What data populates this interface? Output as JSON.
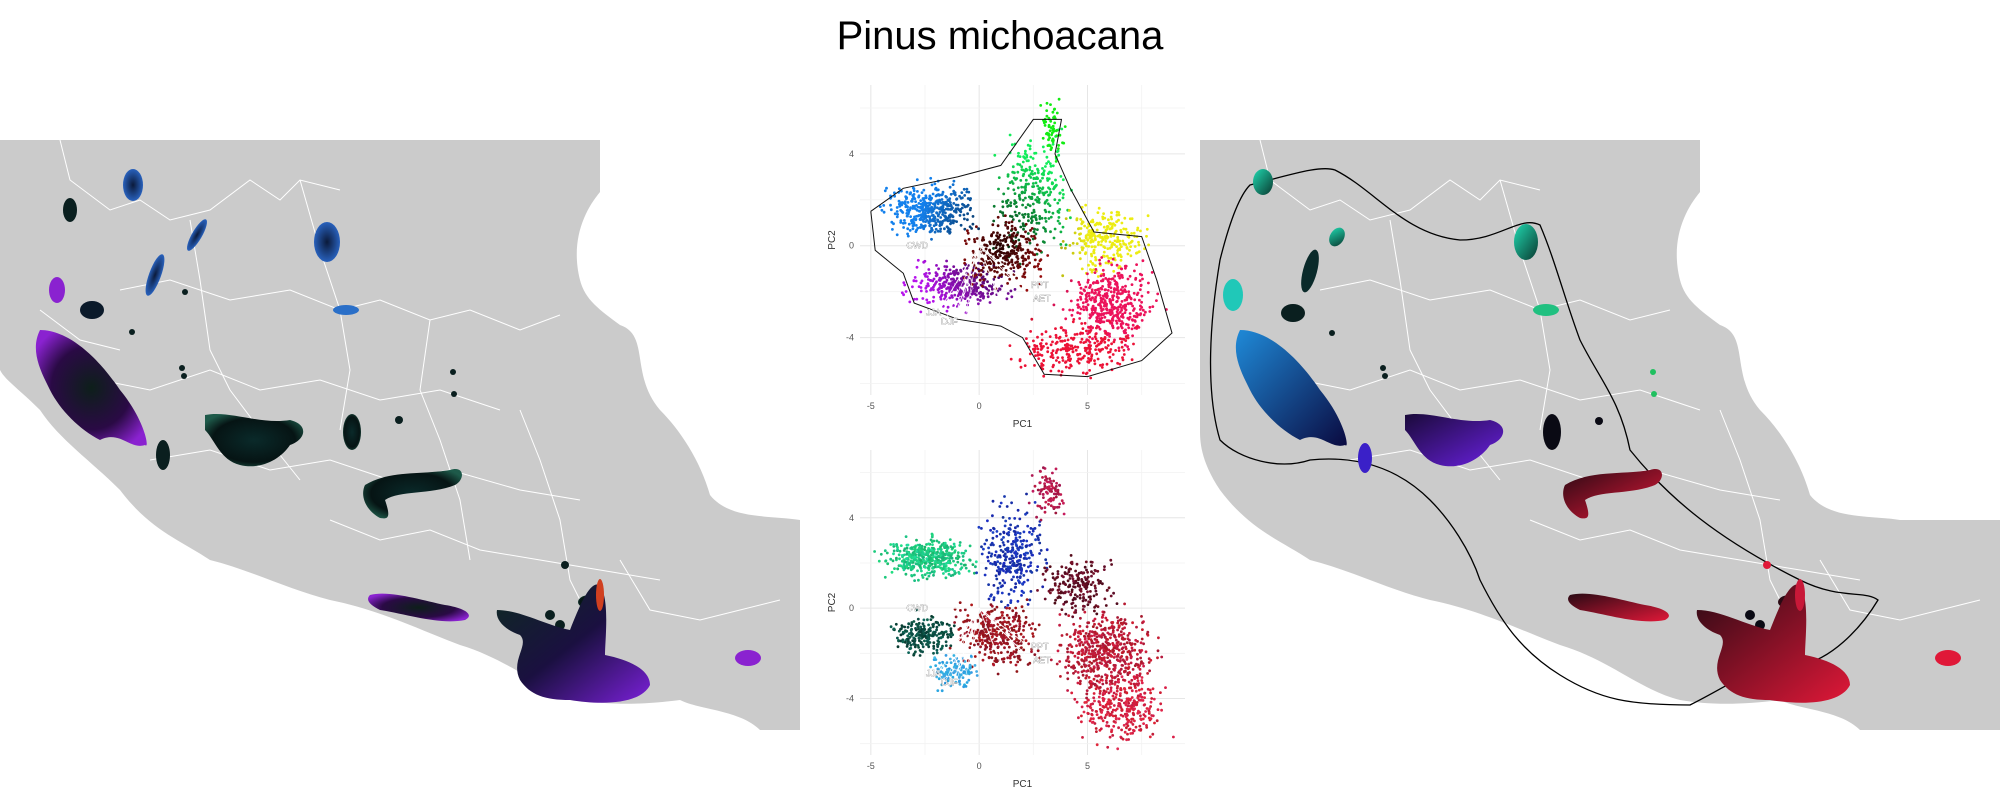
{
  "title": "Pinus michoacana",
  "colors": {
    "land": "#cbcbcb",
    "borders": "#ffffff",
    "hull": "#000000",
    "grid": "#e8e8e8"
  },
  "maps": {
    "left": {
      "description_none": ""
    },
    "right": {
      "description_none": ""
    }
  },
  "pca": {
    "xlabel": "PC1",
    "ylabel": "PC2",
    "x_ticks": [
      "-5",
      "0",
      "5"
    ],
    "y_ticks": [
      "4",
      "0",
      "-4"
    ],
    "xlim": [
      -5.5,
      9.5
    ],
    "ylim": [
      -6.5,
      7
    ],
    "vector_labels": [
      "CWD",
      "PPT",
      "AET",
      "JJA",
      "DJF"
    ]
  },
  "chart_data": [
    {
      "type": "scatter",
      "xlabel": "PC1",
      "ylabel": "PC2",
      "xlim": [
        -5.5,
        9.5
      ],
      "ylim": [
        -6.5,
        7
      ],
      "x_ticks": [
        -5,
        0,
        5
      ],
      "y_ticks": [
        4,
        0,
        -4
      ],
      "grid": true,
      "vectors": [
        {
          "label": "CWD",
          "x": -2.8,
          "y": 0.0
        },
        {
          "label": "PPT",
          "x": 2.3,
          "y": -1.7
        },
        {
          "label": "AET",
          "x": 2.4,
          "y": -2.3
        },
        {
          "label": "JJA",
          "x": -1.9,
          "y": -2.9
        },
        {
          "label": "DJF",
          "x": -1.2,
          "y": -3.3
        }
      ]
    },
    {
      "type": "scatter",
      "xlabel": "PC1",
      "ylabel": "PC2",
      "xlim": [
        -5.5,
        9.5
      ],
      "ylim": [
        -6.5,
        7
      ],
      "x_ticks": [
        -5,
        0,
        5
      ],
      "y_ticks": [
        4,
        0,
        -4
      ],
      "grid": true,
      "vectors": [
        {
          "label": "CWD",
          "x": -2.8,
          "y": 0.0
        },
        {
          "label": "PPT",
          "x": 2.3,
          "y": -1.7
        },
        {
          "label": "AET",
          "x": 2.4,
          "y": -2.3
        },
        {
          "label": "JJA",
          "x": -1.9,
          "y": -2.9
        },
        {
          "label": "DJF",
          "x": -1.2,
          "y": -3.3
        }
      ]
    }
  ]
}
